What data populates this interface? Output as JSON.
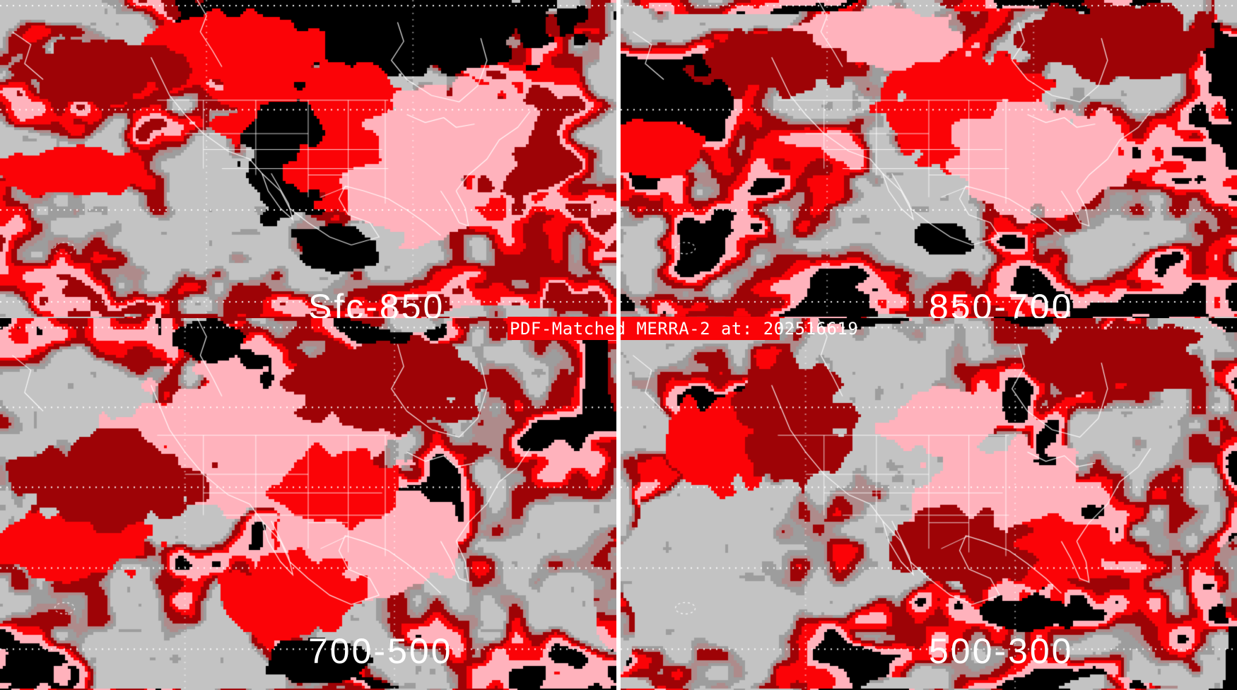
{
  "banner": {
    "text": "PDF-Matched MERRA-2 at: 202516619"
  },
  "panels": [
    {
      "id": "sfc-850",
      "label": "Sfc-850"
    },
    {
      "id": "850-700",
      "label": "850-700"
    },
    {
      "id": "700-500",
      "label": "700-500"
    },
    {
      "id": "500-300",
      "label": "500-300"
    }
  ],
  "palette": {
    "ocean_gray": "#c3c3c3",
    "gray_dark": "#9d9d9d",
    "rosybrown": "#ae8b8b",
    "dark_red": "#9e0306",
    "red": "#fb0307",
    "pink": "#ffb2bc",
    "black": "#000000",
    "map_outline": "#ffffff",
    "graticule": "#ffffff",
    "banner_bg": "#fb0307",
    "banner_text_color": "#ffffff",
    "label_text_color": "#ffffff",
    "divider": "#ffffff"
  }
}
